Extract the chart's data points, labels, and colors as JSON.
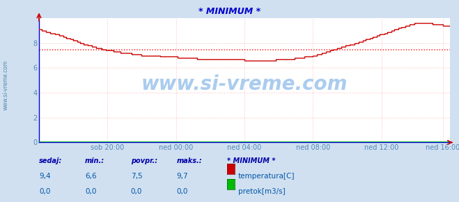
{
  "title": "* MINIMUM *",
  "title_color": "#0000cc",
  "bg_color": "#d0e0f0",
  "plot_bg_color": "#ffffff",
  "grid_color": "#ffbbbb",
  "xlabel_ticks": [
    "sob 20:00",
    "ned 00:00",
    "ned 04:00",
    "ned 08:00",
    "ned 12:00",
    "ned 16:00"
  ],
  "xlim": [
    0,
    288
  ],
  "ylim": [
    0,
    10
  ],
  "yticks": [
    0,
    2,
    4,
    6,
    8
  ],
  "avg_line_y": 7.5,
  "avg_line_color": "#ff0000",
  "temp_line_color": "#cc0000",
  "pretok_line_color": "#00bb00",
  "watermark_text": "www.si-vreme.com",
  "watermark_color": "#aaccee",
  "left_label": "www.si-vreme.com",
  "left_label_color": "#5588aa",
  "footer_labels": [
    "sedaj:",
    "min.:",
    "povpr.:",
    "maks.:"
  ],
  "footer_label_color": "#0000aa",
  "footer_values_temp": [
    "9,4",
    "6,6",
    "7,5",
    "9,7"
  ],
  "footer_values_pretok": [
    "0,0",
    "0,0",
    "0,0",
    "0,0"
  ],
  "footer_value_color": "#0055aa",
  "legend_title": "* MINIMUM *",
  "legend_temp_label": "temperatura[C]",
  "legend_pretok_label": "pretok[m3/s]",
  "tick_label_color": "#5588bb",
  "tick_x_positions": [
    48,
    96,
    144,
    192,
    240,
    283
  ],
  "axis_color": "#0000dd",
  "arrow_color": "#cc0000",
  "x_ctrl": [
    0,
    8,
    16,
    24,
    32,
    48,
    60,
    72,
    90,
    110,
    130,
    144,
    155,
    165,
    175,
    192,
    210,
    225,
    240,
    255,
    265,
    275,
    283,
    288
  ],
  "y_ctrl": [
    9.1,
    8.85,
    8.55,
    8.25,
    7.9,
    7.4,
    7.2,
    7.05,
    6.9,
    6.75,
    6.7,
    6.65,
    6.65,
    6.65,
    6.7,
    6.95,
    7.6,
    8.1,
    8.7,
    9.3,
    9.65,
    9.55,
    9.45,
    9.35
  ]
}
